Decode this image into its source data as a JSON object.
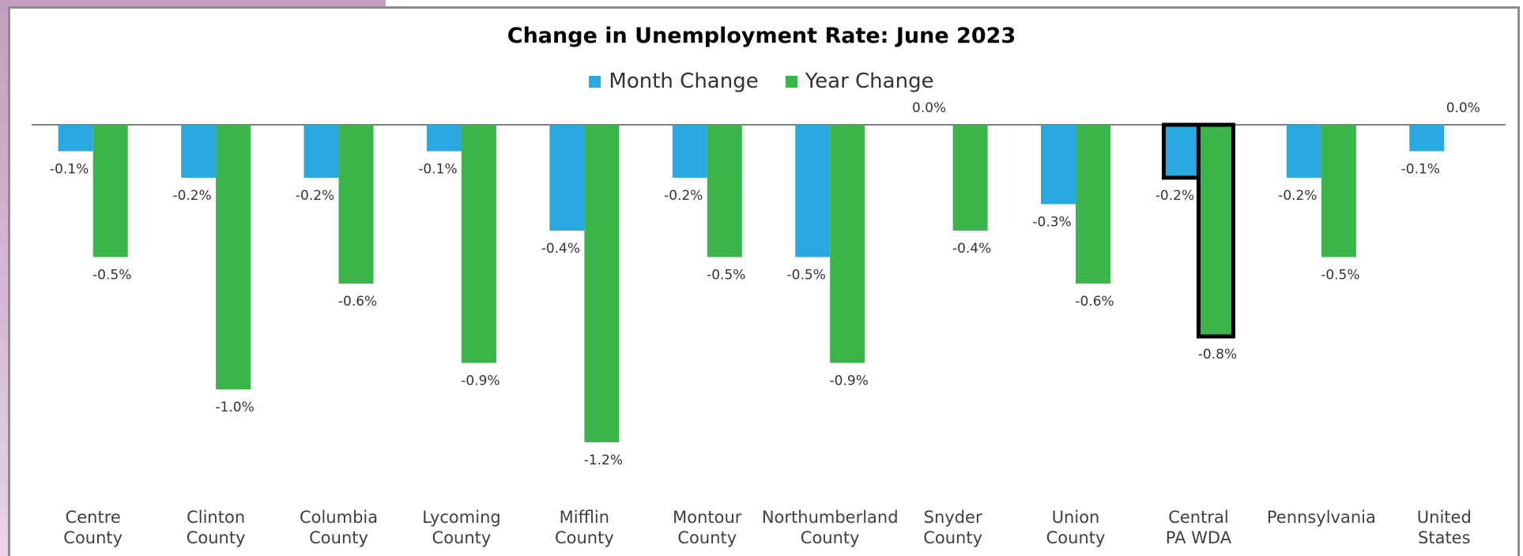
{
  "chart_data": {
    "type": "bar",
    "title": "Change in Unemployment Rate: June 2023",
    "categories": [
      [
        "Centre",
        "County"
      ],
      [
        "Clinton",
        "County"
      ],
      [
        "Columbia",
        "County"
      ],
      [
        "Lycoming",
        "County"
      ],
      [
        "Mifflin",
        "County"
      ],
      [
        "Montour",
        "County"
      ],
      [
        "Northumberland",
        "County"
      ],
      [
        "Snyder",
        "County"
      ],
      [
        "Union",
        "County"
      ],
      [
        "Central",
        "PA WDA"
      ],
      [
        "Pennsylvania"
      ],
      [
        "United",
        "States"
      ]
    ],
    "series": [
      {
        "name": "Month Change",
        "color": "#2aa9e0",
        "values": [
          -0.1,
          -0.2,
          -0.2,
          -0.1,
          -0.4,
          -0.2,
          -0.5,
          0.0,
          -0.3,
          -0.2,
          -0.2,
          -0.1
        ],
        "labels": [
          "-0.1%",
          "-0.2%",
          "-0.2%",
          "-0.1%",
          "-0.4%",
          "-0.2%",
          "-0.5%",
          "0.0%",
          "-0.3%",
          "-0.2%",
          "-0.2%",
          "-0.1%"
        ]
      },
      {
        "name": "Year Change",
        "color": "#3bb54a",
        "values": [
          -0.5,
          -1.0,
          -0.6,
          -0.9,
          -1.2,
          -0.5,
          -0.9,
          -0.4,
          -0.6,
          -0.8,
          -0.5,
          0.0
        ],
        "labels": [
          "-0.5%",
          "-1.0%",
          "-0.6%",
          "-0.9%",
          "-1.2%",
          "-0.5%",
          "-0.9%",
          "-0.4%",
          "-0.6%",
          "-0.8%",
          "-0.5%",
          "0.0%"
        ]
      }
    ],
    "highlighted_category_index": 9,
    "ylim": [
      -1.4,
      0.0
    ],
    "grid": false,
    "legend_position": "top-center",
    "xlabel": "",
    "ylabel": ""
  }
}
